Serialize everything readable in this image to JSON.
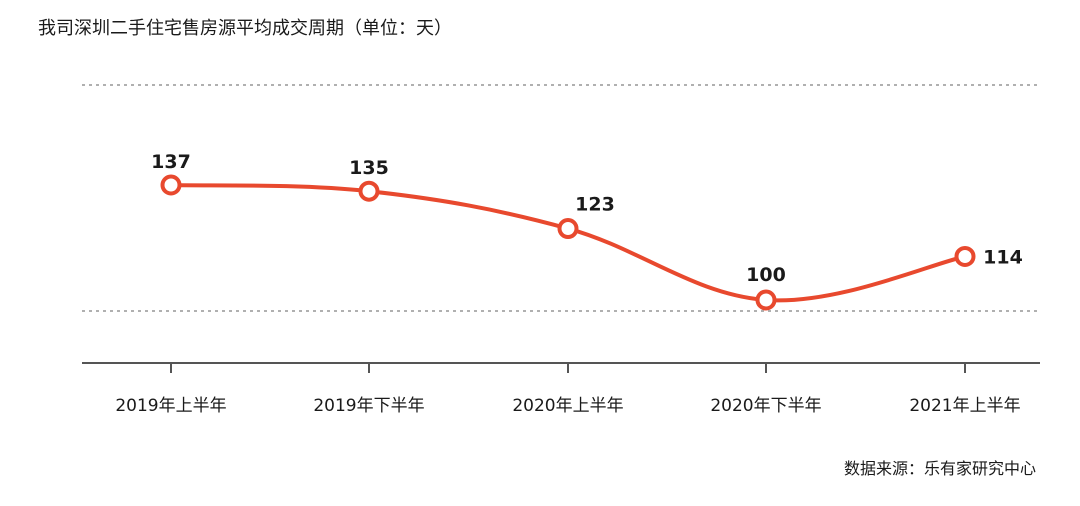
{
  "chart_data": {
    "type": "line",
    "title": "我司深圳二手住宅售房源平均成交周期（单位：天）",
    "categories": [
      "2019年上半年",
      "2019年下半年",
      "2020年上半年",
      "2020年下半年",
      "2021年上半年"
    ],
    "series": [
      {
        "values": [
          137,
          135,
          123,
          100,
          114
        ]
      }
    ],
    "data_labels": [
      "137",
      "135",
      "123",
      "100",
      "114"
    ],
    "ylim": [
      80,
      170
    ],
    "grid": true,
    "legend": "none",
    "line_color": "#e8492e",
    "grid_color": "#b0b0b0",
    "axis_color": "#555555"
  },
  "source": "数据来源：乐有家研究中心"
}
